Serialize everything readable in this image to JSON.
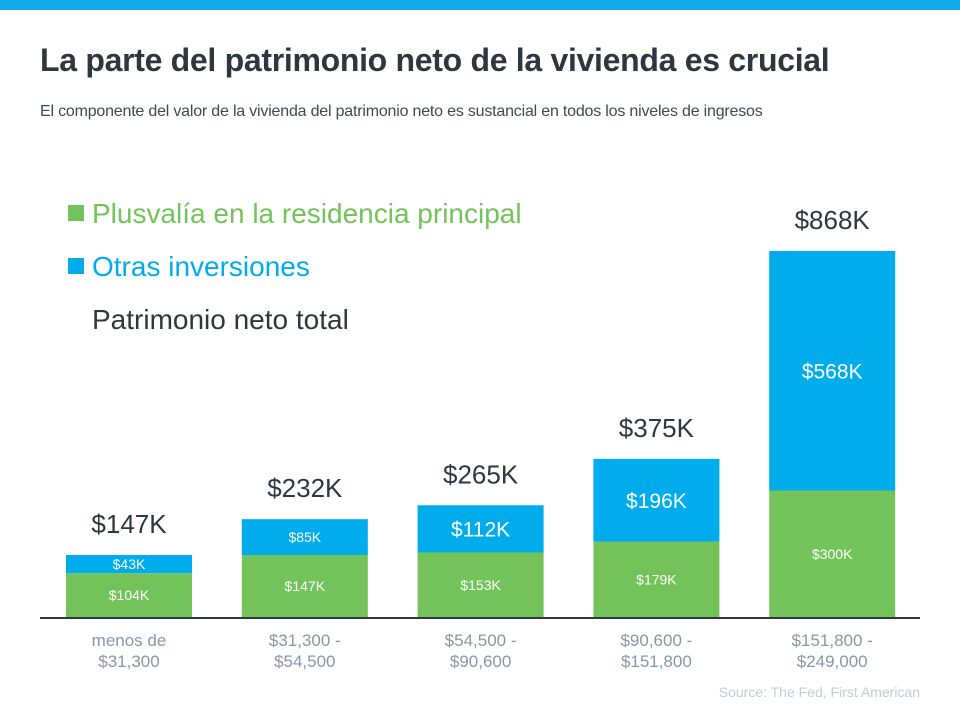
{
  "title": "La parte del patrimonio neto de la vivienda es crucial",
  "subtitle": "El componente del valor de la vivienda del patrimonio neto es sustancial en todos los niveles de ingresos",
  "source": "Source: The Fed, First American",
  "colors": {
    "equity": "#74c35a",
    "other": "#00acec",
    "bar_bg": "#12aaeb"
  },
  "chart_data": {
    "type": "bar",
    "stacked": true,
    "title": "La parte del patrimonio neto de la vivienda es crucial",
    "categories": [
      [
        "menos de",
        "$31,300"
      ],
      [
        "$31,300 -",
        "$54,500"
      ],
      [
        "$54,500 -",
        "$90,600"
      ],
      [
        "$90,600 -",
        "$151,800"
      ],
      [
        "$151,800 -",
        "$249,000"
      ]
    ],
    "series": [
      {
        "name": "Plusvalía en la residencia principal",
        "values": [
          104,
          147,
          153,
          179,
          300
        ],
        "labels": [
          "$104K",
          "$147K",
          "$153K",
          "$179K",
          "$300K"
        ]
      },
      {
        "name": "Otras inversiones",
        "values": [
          43,
          85,
          112,
          196,
          568
        ],
        "labels": [
          "$43K",
          "$85K",
          "$112K",
          "$196K",
          "$568K"
        ]
      }
    ],
    "totals": {
      "name": "Patrimonio neto total",
      "values": [
        147,
        232,
        265,
        375,
        868
      ],
      "labels": [
        "$147K",
        "$232K",
        "$265K",
        "$375K",
        "$868K"
      ]
    },
    "ylim": [
      0,
      868
    ],
    "legend": "top-left",
    "grid": false
  }
}
